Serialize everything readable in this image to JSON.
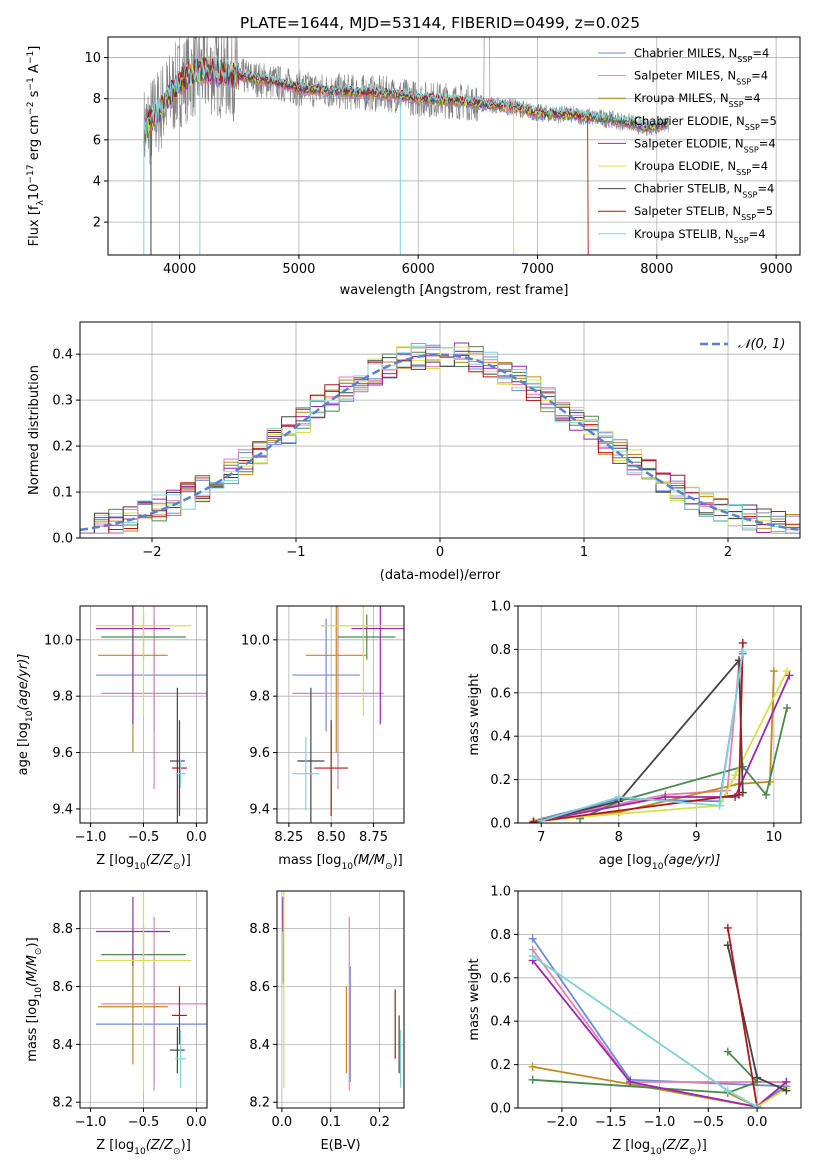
{
  "figure": {
    "title": "PLATE=1644, MJD=53144, FIBERID=0499, z=0.025"
  },
  "models": [
    {
      "label": "Chabrier MILES, N",
      "sub": "SSP",
      "suffix": "=4",
      "color": "#6d8bd8"
    },
    {
      "label": "Salpeter MILES, N",
      "sub": "SSP",
      "suffix": "=4",
      "color": "#e87fb0"
    },
    {
      "label": "Kroupa MILES, N",
      "sub": "SSP",
      "suffix": "=4",
      "color": "#c18a1c"
    },
    {
      "label": "Chabrier ELODIE, N",
      "sub": "SSP",
      "suffix": "=5",
      "color": "#4a8a4e"
    },
    {
      "label": "Salpeter ELODIE, N",
      "sub": "SSP",
      "suffix": "=4",
      "color": "#9b27b0"
    },
    {
      "label": "Kroupa ELODIE, N",
      "sub": "SSP",
      "suffix": "=4",
      "color": "#d6e04a"
    },
    {
      "label": "Chabrier STELIB, N",
      "sub": "SSP",
      "suffix": "=4",
      "color": "#444444"
    },
    {
      "label": "Salpeter STELIB, N",
      "sub": "SSP",
      "suffix": "=5",
      "color": "#b01818"
    },
    {
      "label": "Kroupa STELIB, N",
      "sub": "SSP",
      "suffix": "=4",
      "color": "#7fd3db"
    }
  ],
  "chart_data": [
    {
      "id": "spectrum",
      "type": "line",
      "xlabel": "wavelength [Angstrom, rest frame]",
      "ylabel_main": "Flux [f",
      "ylabel_sub": "λ",
      "ylabel_rest": "10",
      "ylabel_exp1": "−17",
      "ylabel_mid": " erg cm",
      "ylabel_exp2": "−2",
      "ylabel_mid2": " s",
      "ylabel_exp3": "−1",
      "ylabel_mid3": " A",
      "ylabel_exp4": "−1",
      "ylabel_end": "]",
      "xlim": [
        3400,
        9200
      ],
      "ylim": [
        0.4,
        11
      ],
      "xticks": [
        "4000",
        "5000",
        "6000",
        "7000",
        "8000",
        "9000"
      ],
      "yticks": [
        "2",
        "4",
        "6",
        "8",
        "10"
      ],
      "xtick_values": [
        4000,
        5000,
        6000,
        7000,
        8000,
        9000
      ],
      "ytick_values": [
        2,
        4,
        6,
        8,
        10
      ],
      "continuum": [
        [
          3700,
          6.4
        ],
        [
          3850,
          7.6
        ],
        [
          4000,
          8.8
        ],
        [
          4100,
          9.2
        ],
        [
          4200,
          9.4
        ],
        [
          4400,
          9.2
        ],
        [
          4600,
          9.0
        ],
        [
          4800,
          8.8
        ],
        [
          5000,
          8.5
        ],
        [
          5200,
          8.4
        ],
        [
          5500,
          8.3
        ],
        [
          5800,
          8.2
        ],
        [
          6000,
          8.0
        ],
        [
          6300,
          7.9
        ],
        [
          6600,
          7.7
        ],
        [
          6800,
          7.6
        ],
        [
          7000,
          7.3
        ],
        [
          7300,
          7.2
        ],
        [
          7600,
          7.0
        ],
        [
          7800,
          6.8
        ],
        [
          7900,
          6.6
        ],
        [
          8100,
          6.8
        ]
      ],
      "data_range": [
        3700,
        9200
      ]
    },
    {
      "id": "residuals",
      "type": "histogram",
      "xlabel": "(data-model)/error",
      "ylabel": "Normed distribution",
      "xlim": [
        -2.5,
        2.5
      ],
      "ylim": [
        0,
        0.47
      ],
      "xticks": [
        "−2",
        "−1",
        "0",
        "1",
        "2"
      ],
      "xtick_values": [
        -2,
        -1,
        0,
        1,
        2
      ],
      "yticks": [
        "0.0",
        "0.1",
        "0.2",
        "0.3",
        "0.4"
      ],
      "ytick_values": [
        0,
        0.1,
        0.2,
        0.3,
        0.4
      ],
      "legend": "𝒩(0, 1)",
      "legend_color": "#5b7fd3",
      "bin_width": 0.1
    },
    {
      "id": "age_vs_Z",
      "type": "errorbar",
      "xlabel": "Z [log",
      "xlabel_sub": "10",
      "xlabel_rest": "(Z/Z",
      "xlabel_sub2": "⊙",
      "xlabel_end": ")]",
      "ylabel": "age  [log",
      "ylabel_sub": "10",
      "ylabel_rest": "(age/yr)]",
      "xlim": [
        -1.1,
        0.1
      ],
      "ylim": [
        9.35,
        10.12
      ],
      "xticks": [
        "−1.0",
        "−0.5",
        "0.0"
      ],
      "xtick_values": [
        -1.0,
        -0.5,
        0.0
      ],
      "yticks": [
        "9.4",
        "9.6",
        "9.8",
        "10.0"
      ],
      "ytick_values": [
        9.4,
        9.6,
        9.8,
        10.0
      ],
      "points": [
        {
          "m": 0,
          "x": -0.4,
          "xe": 0.55,
          "y": 9.875,
          "ye": 0.2
        },
        {
          "m": 1,
          "x": -0.4,
          "xe": 0.5,
          "y": 9.81,
          "ye": 0.34
        },
        {
          "m": 2,
          "x": -0.6,
          "xe": 0.33,
          "y": 9.945,
          "ye": 0.345
        },
        {
          "m": 3,
          "x": -0.5,
          "xe": 0.4,
          "y": 10.01,
          "ye": 0.08
        },
        {
          "m": 4,
          "x": -0.6,
          "xe": 0.35,
          "y": 10.04,
          "ye": 0.34
        },
        {
          "m": 5,
          "x": -0.5,
          "xe": 0.45,
          "y": 10.05,
          "ye": 0.32
        },
        {
          "m": 6,
          "x": -0.18,
          "xe": 0.07,
          "y": 9.57,
          "ye": 0.26
        },
        {
          "m": 7,
          "x": -0.16,
          "xe": 0.07,
          "y": 9.545,
          "ye": 0.17
        },
        {
          "m": 8,
          "x": -0.15,
          "xe": 0.05,
          "y": 9.525,
          "ye": 0.05
        }
      ]
    },
    {
      "id": "age_vs_mass",
      "type": "errorbar",
      "xlabel": "mass [log",
      "xlabel_sub": "10",
      "xlabel_rest": "(M/M",
      "xlabel_sub2": "⊙",
      "xlabel_end": ")]",
      "xlim": [
        8.18,
        8.93
      ],
      "ylim": [
        9.35,
        10.12
      ],
      "xticks": [
        "8.25",
        "8.50",
        "8.75"
      ],
      "xtick_values": [
        8.25,
        8.5,
        8.75
      ],
      "yticks": [
        "9.4",
        "9.6",
        "9.8",
        "10.0"
      ],
      "ytick_values": [
        9.4,
        9.6,
        9.8,
        10.0
      ],
      "points": [
        {
          "m": 0,
          "x": 8.47,
          "xe": 0.2,
          "y": 9.875,
          "ye": 0.2
        },
        {
          "m": 1,
          "x": 8.54,
          "xe": 0.27,
          "y": 9.81,
          "ye": 0.34
        },
        {
          "m": 2,
          "x": 8.53,
          "xe": 0.18,
          "y": 9.945,
          "ye": 0.345
        },
        {
          "m": 3,
          "x": 8.71,
          "xe": 0.17,
          "y": 10.01,
          "ye": 0.08
        },
        {
          "m": 4,
          "x": 8.79,
          "xe": 0.17,
          "y": 10.04,
          "ye": 0.34
        },
        {
          "m": 5,
          "x": 8.69,
          "xe": 0.25,
          "y": 10.05,
          "ye": 0.32
        },
        {
          "m": 6,
          "x": 8.38,
          "xe": 0.08,
          "y": 9.57,
          "ye": 0.26
        },
        {
          "m": 7,
          "x": 8.5,
          "xe": 0.1,
          "y": 9.545,
          "ye": 0.17
        },
        {
          "m": 8,
          "x": 8.35,
          "xe": 0.08,
          "y": 9.525,
          "ye": 0.13
        }
      ]
    },
    {
      "id": "mass_weight_vs_age",
      "type": "line",
      "xlabel": "age  [log",
      "xlabel_sub": "10",
      "xlabel_rest": "(age/yr)]",
      "ylabel": "mass weight",
      "xlim": [
        6.7,
        10.35
      ],
      "ylim": [
        0,
        1
      ],
      "xticks": [
        "7",
        "8",
        "9",
        "10"
      ],
      "xtick_values": [
        7,
        8,
        9,
        10
      ],
      "yticks": [
        "0.0",
        "0.2",
        "0.4",
        "0.6",
        "0.8",
        "1.0"
      ],
      "ytick_values": [
        0,
        0.2,
        0.4,
        0.6,
        0.8,
        1.0
      ],
      "series": [
        {
          "m": 0,
          "x": [
            6.9,
            8.0,
            9.3,
            9.6
          ],
          "y": [
            0.01,
            0.11,
            0.1,
            0.78
          ]
        },
        {
          "m": 1,
          "x": [
            6.9,
            8.6,
            9.4,
            9.55
          ],
          "y": [
            0.01,
            0.13,
            0.15,
            0.73
          ]
        },
        {
          "m": 2,
          "x": [
            6.9,
            8.0,
            9.55,
            9.95,
            10.0
          ],
          "y": [
            0.005,
            0.05,
            0.18,
            0.19,
            0.7
          ]
        },
        {
          "m": 3,
          "x": [
            7.5,
            8.0,
            9.6,
            9.9,
            10.17
          ],
          "y": [
            0.02,
            0.1,
            0.26,
            0.13,
            0.53
          ]
        },
        {
          "m": 4,
          "x": [
            6.9,
            8.6,
            9.5,
            10.2
          ],
          "y": [
            0.005,
            0.12,
            0.12,
            0.68
          ]
        },
        {
          "m": 5,
          "x": [
            6.9,
            9.3,
            9.5,
            10.17
          ],
          "y": [
            0.01,
            0.08,
            0.22,
            0.7
          ]
        },
        {
          "m": 6,
          "x": [
            6.9,
            8.0,
            9.55,
            9.6
          ],
          "y": [
            0.005,
            0.1,
            0.75,
            0.14
          ]
        },
        {
          "m": 7,
          "x": [
            6.9,
            9.55,
            9.6
          ],
          "y": [
            0.005,
            0.13,
            0.83
          ]
        },
        {
          "m": 8,
          "x": [
            7.0,
            8.0,
            9.3,
            9.6
          ],
          "y": [
            0.01,
            0.12,
            0.08,
            0.79
          ]
        }
      ]
    },
    {
      "id": "mass_vs_Z",
      "type": "errorbar",
      "xlabel": "Z [log",
      "xlabel_sub": "10",
      "xlabel_rest": "(Z/Z",
      "xlabel_sub2": "⊙",
      "xlabel_end": ")]",
      "ylabel": "mass [log",
      "ylabel_sub": "10",
      "ylabel_rest": "(M/M",
      "ylabel_sub2": "⊙",
      "ylabel_end": ")]",
      "xlim": [
        -1.1,
        0.1
      ],
      "ylim": [
        8.18,
        8.93
      ],
      "xticks": [
        "−1.0",
        "−0.5",
        "0.0"
      ],
      "xtick_values": [
        -1.0,
        -0.5,
        0.0
      ],
      "yticks": [
        "8.2",
        "8.4",
        "8.6",
        "8.8"
      ],
      "ytick_values": [
        8.2,
        8.4,
        8.6,
        8.8
      ],
      "points": [
        {
          "m": 0,
          "x": -0.4,
          "xe": 0.55,
          "y": 8.47,
          "ye": 0.2
        },
        {
          "m": 1,
          "x": -0.4,
          "xe": 0.5,
          "y": 8.54,
          "ye": 0.3
        },
        {
          "m": 2,
          "x": -0.6,
          "xe": 0.33,
          "y": 8.53,
          "ye": 0.2
        },
        {
          "m": 3,
          "x": -0.5,
          "xe": 0.4,
          "y": 8.71,
          "ye": 0.1
        },
        {
          "m": 4,
          "x": -0.6,
          "xe": 0.35,
          "y": 8.79,
          "ye": 0.12
        },
        {
          "m": 5,
          "x": -0.5,
          "xe": 0.45,
          "y": 8.69,
          "ye": 0.45
        },
        {
          "m": 6,
          "x": -0.18,
          "xe": 0.07,
          "y": 8.38,
          "ye": 0.08
        },
        {
          "m": 7,
          "x": -0.16,
          "xe": 0.07,
          "y": 8.5,
          "ye": 0.1
        },
        {
          "m": 8,
          "x": -0.15,
          "xe": 0.05,
          "y": 8.35,
          "ye": 0.1
        }
      ]
    },
    {
      "id": "mass_vs_ebv",
      "type": "errorbar",
      "xlabel": "E(B-V)",
      "xlim": [
        -0.01,
        0.25
      ],
      "ylim": [
        8.18,
        8.93
      ],
      "xticks": [
        "0.0",
        "0.1",
        "0.2"
      ],
      "xtick_values": [
        0.0,
        0.1,
        0.2
      ],
      "yticks": [
        "8.2",
        "8.4",
        "8.6",
        "8.8"
      ],
      "ytick_values": [
        8.2,
        8.4,
        8.6,
        8.8
      ],
      "points": [
        {
          "m": 0,
          "x": 0.14,
          "xe": 0,
          "y": 8.47,
          "ye": 0.2
        },
        {
          "m": 1,
          "x": 0.138,
          "xe": 0,
          "y": 8.54,
          "ye": 0.3
        },
        {
          "m": 2,
          "x": 0.132,
          "xe": 0,
          "y": 8.45,
          "ye": 0.15
        },
        {
          "m": 3,
          "x": 0.003,
          "xe": 0,
          "y": 8.71,
          "ye": 0.1
        },
        {
          "m": 4,
          "x": 0.002,
          "xe": 0,
          "y": 8.85,
          "ye": 0.06
        },
        {
          "m": 5,
          "x": 0.004,
          "xe": 0,
          "y": 8.6,
          "ye": 0.35
        },
        {
          "m": 6,
          "x": 0.24,
          "xe": 0,
          "y": 8.4,
          "ye": 0.1
        },
        {
          "m": 7,
          "x": 0.232,
          "xe": 0,
          "y": 8.47,
          "ye": 0.12
        },
        {
          "m": 8,
          "x": 0.243,
          "xe": 0,
          "y": 8.35,
          "ye": 0.1
        }
      ]
    },
    {
      "id": "mass_weight_vs_Z",
      "type": "line",
      "xlabel": "Z [log",
      "xlabel_sub": "10",
      "xlabel_rest": "(Z/Z",
      "xlabel_sub2": "⊙",
      "xlabel_end": ")]",
      "ylabel": "mass weight",
      "xlim": [
        -2.45,
        0.45
      ],
      "ylim": [
        0,
        1
      ],
      "xticks": [
        "−2.0",
        "−1.5",
        "−1.0",
        "−0.5",
        "0.0"
      ],
      "xtick_values": [
        -2.0,
        -1.5,
        -1.0,
        -0.5,
        0.0
      ],
      "yticks": [
        "0.0",
        "0.2",
        "0.4",
        "0.6",
        "0.8",
        "1.0"
      ],
      "ytick_values": [
        0,
        0.2,
        0.4,
        0.6,
        0.8,
        1.0
      ],
      "series": [
        {
          "m": 0,
          "x": [
            -2.3,
            -1.3,
            0.3,
            0.0
          ],
          "y": [
            0.78,
            0.13,
            0.1,
            0.01
          ]
        },
        {
          "m": 1,
          "x": [
            -2.3,
            -1.3,
            0.3,
            0.0
          ],
          "y": [
            0.73,
            0.12,
            0.12,
            0.01
          ]
        },
        {
          "m": 2,
          "x": [
            -2.3,
            0.0,
            -0.3
          ],
          "y": [
            0.19,
            0.005,
            0.07
          ]
        },
        {
          "m": 3,
          "x": [
            -2.3,
            -0.3,
            0.0,
            -0.3
          ],
          "y": [
            0.13,
            0.07,
            0.12,
            0.26
          ]
        },
        {
          "m": 4,
          "x": [
            -2.3,
            -1.3,
            0.0,
            0.3
          ],
          "y": [
            0.68,
            0.12,
            0.005,
            0.12
          ]
        },
        {
          "m": 5,
          "x": [
            -2.3,
            -0.3,
            0.0,
            0.3
          ],
          "y": [
            0.7,
            0.08,
            0.005,
            0.09
          ]
        },
        {
          "m": 6,
          "x": [
            -0.3,
            0.0,
            0.3
          ],
          "y": [
            0.75,
            0.14,
            0.08
          ]
        },
        {
          "m": 7,
          "x": [
            -0.3,
            0.0
          ],
          "y": [
            0.83,
            0.005
          ]
        },
        {
          "m": 8,
          "x": [
            -2.3,
            -0.3,
            0.0
          ],
          "y": [
            0.7,
            0.08,
            0.005
          ]
        }
      ]
    }
  ]
}
